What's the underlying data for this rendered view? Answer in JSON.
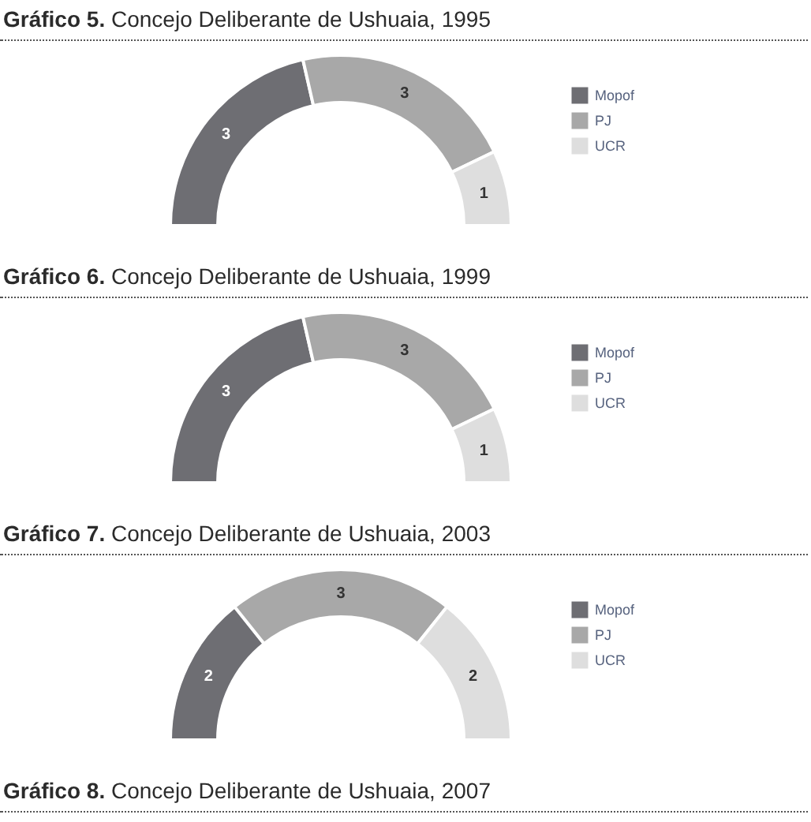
{
  "chart_data": [
    {
      "type": "donut",
      "title": "Gráfico 5. Concejo Deliberante de Ushuaia, 1995",
      "categories": [
        "Mopof",
        "PJ",
        "UCR"
      ],
      "values": [
        3,
        3,
        1
      ],
      "colors": [
        "#6e6e73",
        "#a8a8a8",
        "#dedede"
      ],
      "data_labels": true,
      "legend": "right"
    },
    {
      "type": "donut",
      "title": "Gráfico 6. Concejo Deliberante de Ushuaia, 1999",
      "categories": [
        "Mopof",
        "PJ",
        "UCR"
      ],
      "values": [
        3,
        3,
        1
      ],
      "colors": [
        "#6e6e73",
        "#a8a8a8",
        "#dedede"
      ],
      "data_labels": true,
      "legend": "right"
    },
    {
      "type": "donut",
      "title": "Gráfico 7. Concejo Deliberante de Ushuaia, 2003",
      "categories": [
        "Mopof",
        "PJ",
        "UCR"
      ],
      "values": [
        2,
        3,
        2
      ],
      "colors": [
        "#6e6e73",
        "#a8a8a8",
        "#dedede"
      ],
      "data_labels": true,
      "legend": "right"
    },
    {
      "type": "other",
      "title": "Gráfico 8. Concejo Deliberante de Ushuaia, 2007"
    }
  ]
}
